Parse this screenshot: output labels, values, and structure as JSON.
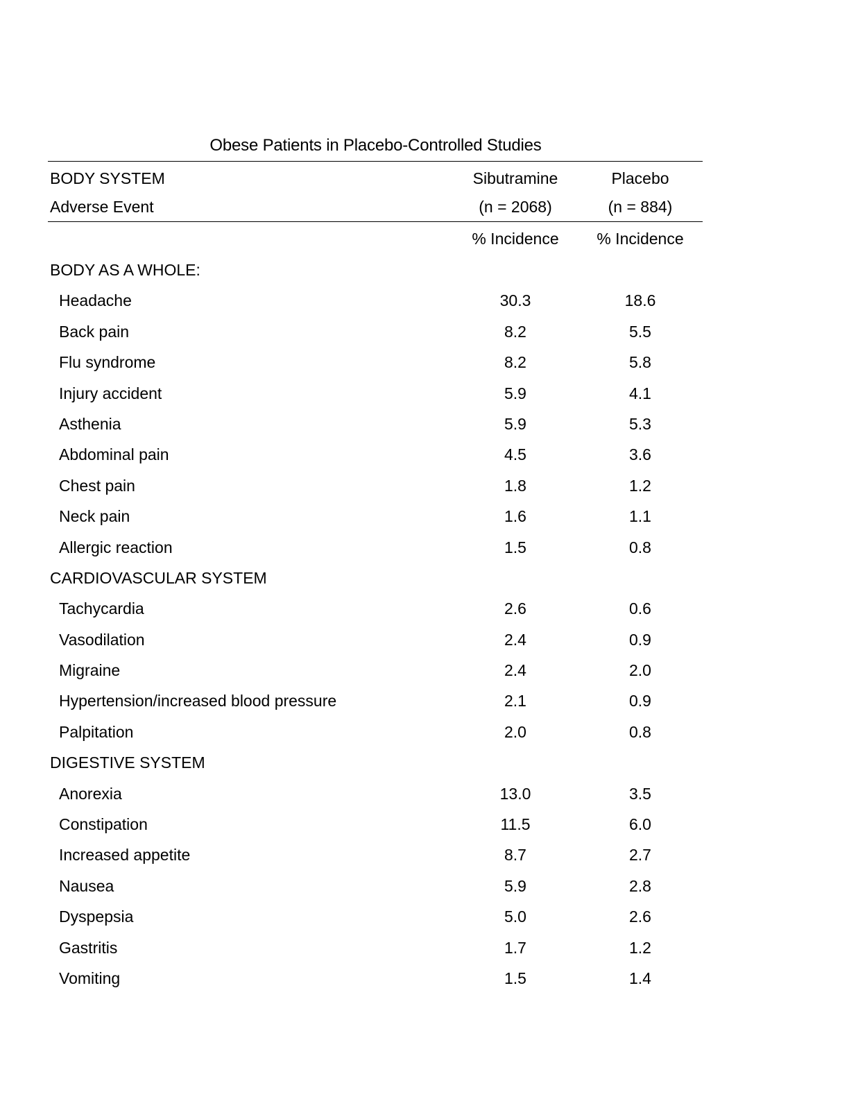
{
  "table": {
    "title": "Obese Patients in Placebo-Controlled Studies",
    "header": {
      "row1_left": "BODY SYSTEM",
      "row2_left": "Adverse Event",
      "sib_name": "Sibutramine",
      "sib_n": "(n = 2068)",
      "pla_name": "Placebo",
      "pla_n": "(n = 884)",
      "sib_unit": "% Incidence",
      "pla_unit": "% Incidence"
    },
    "rows": [
      {
        "label": "BODY AS A WHOLE:",
        "sibutramine": "",
        "placebo": ""
      },
      {
        "label": "Headache",
        "sibutramine": "30.3",
        "placebo": "18.6"
      },
      {
        "label": "Back pain",
        "sibutramine": "8.2",
        "placebo": "5.5"
      },
      {
        "label": "Flu syndrome",
        "sibutramine": "8.2",
        "placebo": "5.8"
      },
      {
        "label": "Injury accident",
        "sibutramine": "5.9",
        "placebo": "4.1"
      },
      {
        "label": "Asthenia",
        "sibutramine": "5.9",
        "placebo": "5.3"
      },
      {
        "label": "Abdominal pain",
        "sibutramine": "4.5",
        "placebo": "3.6"
      },
      {
        "label": "Chest pain",
        "sibutramine": "1.8",
        "placebo": "1.2"
      },
      {
        "label": "Neck pain",
        "sibutramine": "1.6",
        "placebo": "1.1"
      },
      {
        "label": "Allergic reaction",
        "sibutramine": "1.5",
        "placebo": "0.8"
      },
      {
        "label": "CARDIOVASCULAR SYSTEM",
        "sibutramine": "",
        "placebo": ""
      },
      {
        "label": "Tachycardia",
        "sibutramine": "2.6",
        "placebo": "0.6"
      },
      {
        "label": "Vasodilation",
        "sibutramine": "2.4",
        "placebo": "0.9"
      },
      {
        "label": "Migraine",
        "sibutramine": "2.4",
        "placebo": "2.0"
      },
      {
        "label": "Hypertension/increased blood pressure",
        "sibutramine": "2.1",
        "placebo": "0.9"
      },
      {
        "label": "Palpitation",
        "sibutramine": "2.0",
        "placebo": "0.8"
      },
      {
        "label": "DIGESTIVE SYSTEM",
        "sibutramine": "",
        "placebo": ""
      },
      {
        "label": "Anorexia",
        "sibutramine": "13.0",
        "placebo": "3.5"
      },
      {
        "label": "Constipation",
        "sibutramine": "11.5",
        "placebo": "6.0"
      },
      {
        "label": "Increased appetite",
        "sibutramine": "8.7",
        "placebo": "2.7"
      },
      {
        "label": "Nausea",
        "sibutramine": "5.9",
        "placebo": "2.8"
      },
      {
        "label": "Dyspepsia",
        "sibutramine": "5.0",
        "placebo": "2.6"
      },
      {
        "label": "Gastritis",
        "sibutramine": "1.7",
        "placebo": "1.2"
      },
      {
        "label": "Vomiting",
        "sibutramine": "1.5",
        "placebo": "1.4"
      }
    ]
  }
}
